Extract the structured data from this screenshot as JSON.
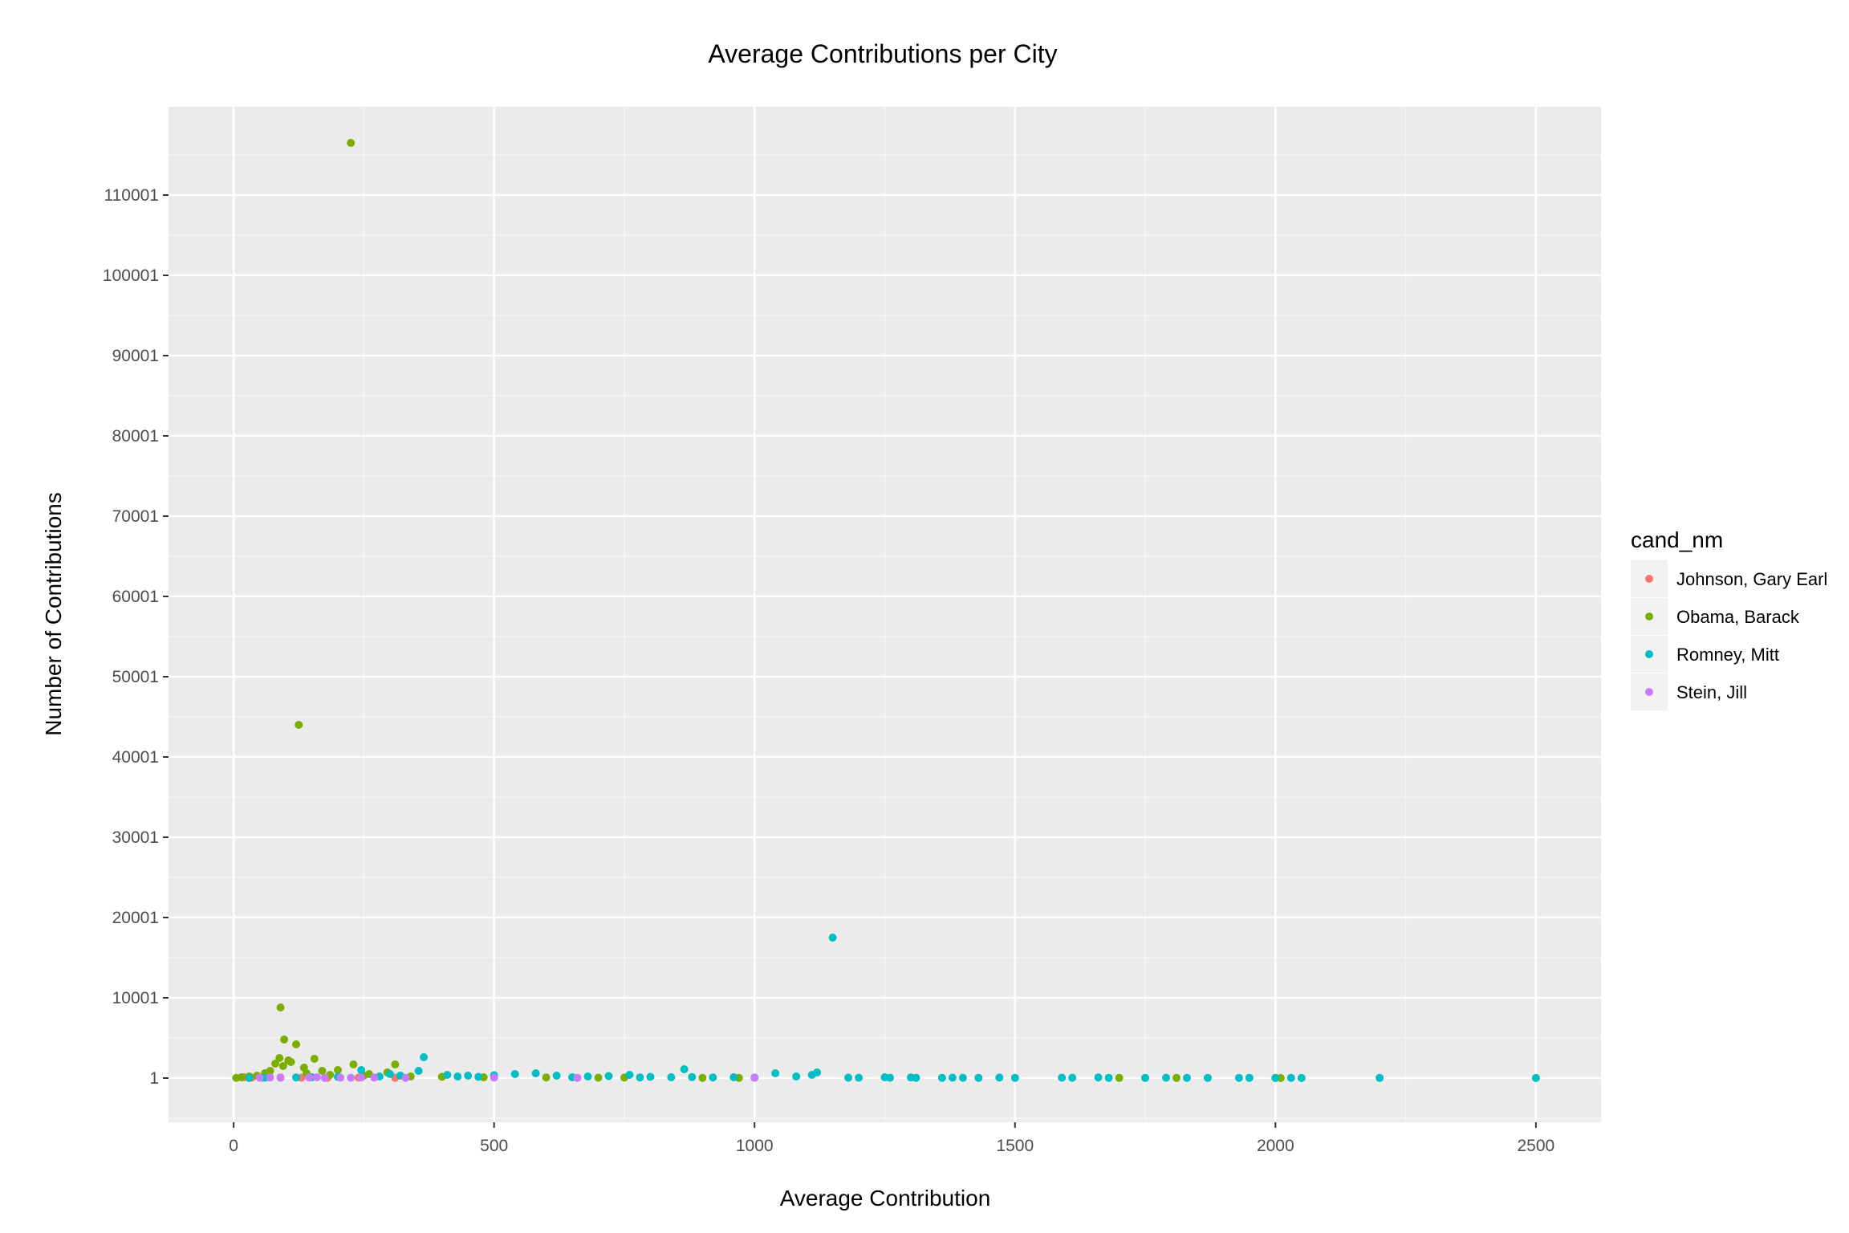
{
  "chart_data": {
    "type": "scatter",
    "title": "Average Contributions per City",
    "xlabel": "Average Contribution",
    "ylabel": "Number of Contributions",
    "xlim": [
      -125,
      2625
    ],
    "ylim": [
      -5500,
      121000
    ],
    "x_ticks": [
      0,
      500,
      1000,
      1500,
      2000,
      2500
    ],
    "x_tick_labels": [
      "0",
      "500",
      "1000",
      "1500",
      "2000",
      "2500"
    ],
    "y_ticks": [
      1,
      10001,
      20001,
      30001,
      40001,
      50001,
      60001,
      70001,
      80001,
      90001,
      100001,
      110001
    ],
    "y_tick_labels": [
      "1",
      "10001",
      "20001",
      "30001",
      "40001",
      "50001",
      "60001",
      "70001",
      "80001",
      "90001",
      "100001",
      "110001"
    ],
    "grid": true,
    "legend": {
      "title": "cand_nm",
      "position": "right"
    },
    "colors": {
      "panel_bg": "#ebebeb",
      "grid_major": "#ffffff",
      "grid_minor": "#f5f5f5"
    },
    "series": [
      {
        "name": "Johnson, Gary Earl",
        "color": "#F8766D",
        "points": [
          [
            20,
            100
          ],
          [
            35,
            60
          ],
          [
            55,
            40
          ],
          [
            90,
            80
          ],
          [
            130,
            50
          ],
          [
            180,
            30
          ],
          [
            240,
            60
          ],
          [
            310,
            20
          ]
        ]
      },
      {
        "name": "Obama, Barack",
        "color": "#7CAE00",
        "points": [
          [
            225,
            116500
          ],
          [
            125,
            44000
          ],
          [
            90,
            8800
          ],
          [
            97,
            4800
          ],
          [
            120,
            4200
          ],
          [
            88,
            2500
          ],
          [
            105,
            2200
          ],
          [
            155,
            2400
          ],
          [
            80,
            1800
          ],
          [
            95,
            1500
          ],
          [
            110,
            2000
          ],
          [
            135,
            1300
          ],
          [
            170,
            900
          ],
          [
            200,
            1000
          ],
          [
            230,
            1700
          ],
          [
            310,
            1700
          ],
          [
            295,
            700
          ],
          [
            260,
            500
          ],
          [
            60,
            600
          ],
          [
            45,
            300
          ],
          [
            30,
            200
          ],
          [
            15,
            100
          ],
          [
            5,
            20
          ],
          [
            70,
            900
          ],
          [
            140,
            600
          ],
          [
            185,
            400
          ],
          [
            250,
            300
          ],
          [
            340,
            200
          ],
          [
            400,
            150
          ],
          [
            480,
            100
          ],
          [
            600,
            80
          ],
          [
            700,
            50
          ],
          [
            750,
            60
          ],
          [
            900,
            30
          ],
          [
            970,
            20
          ],
          [
            1000,
            40
          ],
          [
            1700,
            20
          ],
          [
            1810,
            20
          ],
          [
            2000,
            10
          ],
          [
            2010,
            10
          ]
        ]
      },
      {
        "name": "Romney, Mitt",
        "color": "#00BFC4",
        "points": [
          [
            1150,
            17500
          ],
          [
            365,
            2600
          ],
          [
            865,
            1100
          ],
          [
            245,
            1000
          ],
          [
            355,
            900
          ],
          [
            410,
            400
          ],
          [
            450,
            300
          ],
          [
            500,
            350
          ],
          [
            540,
            500
          ],
          [
            580,
            600
          ],
          [
            620,
            300
          ],
          [
            680,
            200
          ],
          [
            720,
            250
          ],
          [
            760,
            400
          ],
          [
            800,
            150
          ],
          [
            840,
            100
          ],
          [
            880,
            120
          ],
          [
            920,
            80
          ],
          [
            960,
            100
          ],
          [
            1000,
            60
          ],
          [
            1040,
            600
          ],
          [
            1080,
            200
          ],
          [
            1110,
            400
          ],
          [
            1120,
            700
          ],
          [
            1180,
            50
          ],
          [
            1250,
            100
          ],
          [
            1300,
            80
          ],
          [
            1360,
            30
          ],
          [
            1380,
            50
          ],
          [
            1400,
            40
          ],
          [
            1430,
            30
          ],
          [
            1470,
            60
          ],
          [
            1500,
            30
          ],
          [
            1590,
            50
          ],
          [
            1610,
            40
          ],
          [
            1660,
            80
          ],
          [
            1680,
            30
          ],
          [
            1750,
            20
          ],
          [
            1790,
            40
          ],
          [
            1830,
            30
          ],
          [
            1870,
            20
          ],
          [
            1930,
            30
          ],
          [
            1950,
            30
          ],
          [
            2000,
            20
          ],
          [
            2030,
            30
          ],
          [
            2050,
            10
          ],
          [
            2200,
            20
          ],
          [
            2500,
            10
          ],
          [
            300,
            500
          ],
          [
            320,
            300
          ],
          [
            280,
            200
          ],
          [
            200,
            150
          ],
          [
            150,
            100
          ],
          [
            120,
            80
          ],
          [
            60,
            50
          ],
          [
            30,
            20
          ],
          [
            430,
            200
          ],
          [
            470,
            150
          ],
          [
            650,
            100
          ],
          [
            780,
            80
          ],
          [
            1200,
            40
          ],
          [
            1260,
            40
          ],
          [
            1310,
            30
          ]
        ]
      },
      {
        "name": "Stein, Jill",
        "color": "#C77CFF",
        "points": [
          [
            50,
            50
          ],
          [
            70,
            80
          ],
          [
            90,
            40
          ],
          [
            145,
            60
          ],
          [
            160,
            100
          ],
          [
            175,
            30
          ],
          [
            205,
            50
          ],
          [
            225,
            40
          ],
          [
            245,
            70
          ],
          [
            270,
            60
          ],
          [
            330,
            30
          ],
          [
            500,
            50
          ],
          [
            660,
            30
          ],
          [
            1000,
            40
          ]
        ]
      }
    ]
  }
}
